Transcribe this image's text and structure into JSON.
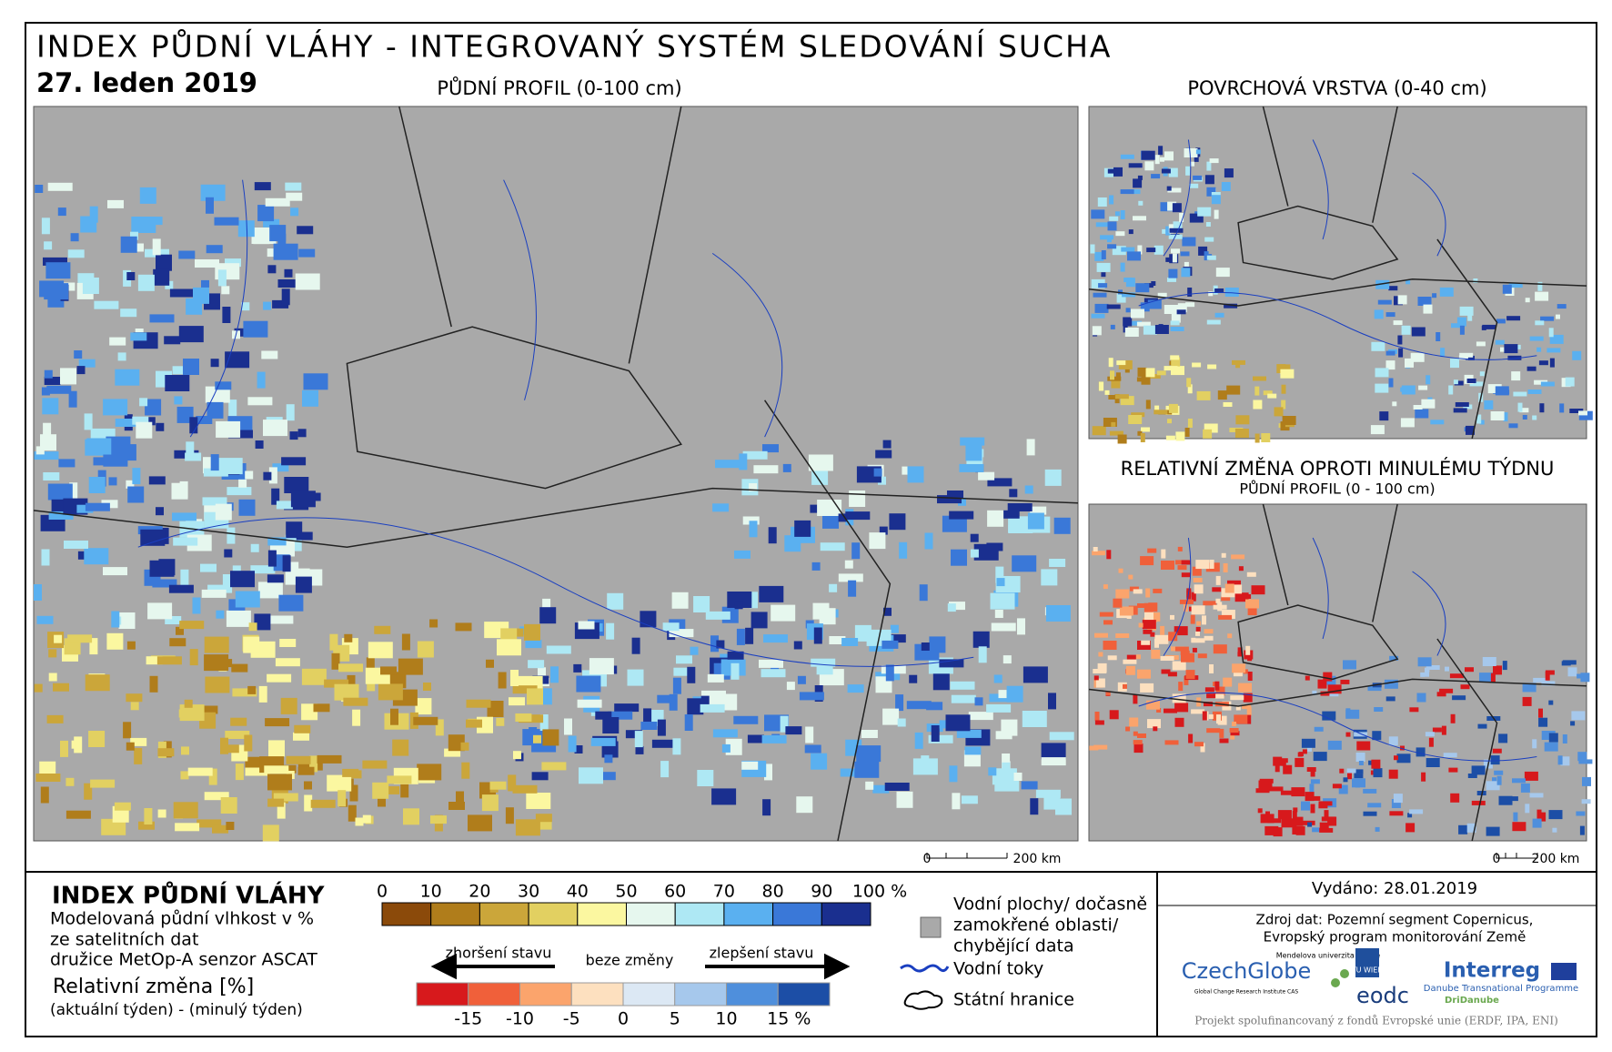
{
  "header": {
    "title": "INDEX PŮDNÍ VLÁHY - INTEGROVANÝ SYSTÉM SLEDOVÁNÍ SUCHA",
    "date": "27. leden 2019"
  },
  "panels": {
    "main": {
      "title": "PŮDNÍ PROFIL (0-100 cm)",
      "scale": [
        "0",
        "200 km"
      ]
    },
    "surface": {
      "title": "POVRCHOVÁ VRSTVA (0-40 cm)"
    },
    "change": {
      "title": "RELATIVNÍ ZMĚNA OPROTI MINULÉMU TÝDNU",
      "subtitle": "PŮDNÍ PROFIL (0 - 100 cm)",
      "scale": [
        "0",
        "200 km"
      ]
    }
  },
  "legend": {
    "title": "INDEX PŮDNÍ VLÁHY",
    "description": [
      "Modelovaná půdní vlhkost v %",
      "ze satelitních dat",
      "družice MetOp-A senzor ASCAT"
    ],
    "change_title": "Relativní změna [%]",
    "change_description": "(aktuální týden) - (minulý týden)",
    "index_ticks": [
      "0",
      "10",
      "20",
      "30",
      "40",
      "50",
      "60",
      "70",
      "80",
      "90",
      "100 %"
    ],
    "index_colors": [
      "#8b4a0a",
      "#b07d1b",
      "#cba63a",
      "#e2d061",
      "#fbf7a0",
      "#e6f7ee",
      "#aee8f4",
      "#5ab0f0",
      "#3a78d8",
      "#1a2f8f"
    ],
    "worse": "zhoršení stavu",
    "no_change": "beze změny",
    "better": "zlepšení stavu",
    "change_ticks": [
      "-15",
      "-10",
      "-5",
      "0",
      "5",
      "10",
      "15 %"
    ],
    "change_colors": [
      "#d7191c",
      "#f0603a",
      "#fba46c",
      "#fde0bf",
      "#dce8f4",
      "#a6c8ec",
      "#4f8fdc",
      "#1c4ea6"
    ],
    "missing": [
      "Vodní plochy/ dočasně",
      "zamokřené oblasti/",
      "chybějící data"
    ],
    "rivers": "Vodní toky",
    "borders": "Státní hranice"
  },
  "info": {
    "issued": "Vydáno: 28.01.2019",
    "source": [
      "Zdroj dat: Pozemní segment Copernicus,",
      "Evropský program monitorování Země"
    ],
    "logos": [
      "CzechGlobe",
      "Global Change Research Institute CAS",
      "Mendelova univerzita v Brně",
      "TU WIEN",
      "eodc",
      "Interreg",
      "Danube Transnational Programme",
      "DriDanube"
    ],
    "footer": "Projekt spolufinancovaný z fondů Evropské unie (ERDF, IPA, ENI)"
  }
}
